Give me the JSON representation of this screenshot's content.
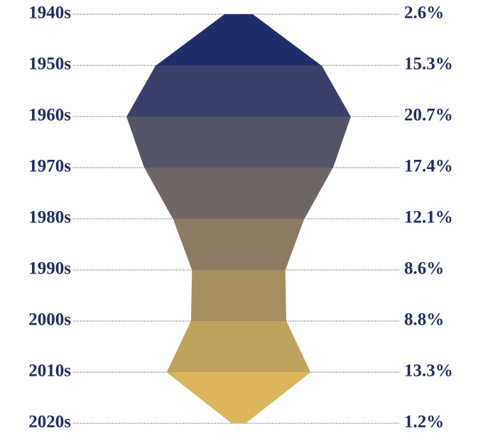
{
  "chart_data": {
    "type": "violin",
    "categories": [
      "1940s",
      "1950s",
      "1960s",
      "1970s",
      "1980s",
      "1990s",
      "2000s",
      "2010s",
      "2020s"
    ],
    "values": [
      2.6,
      15.3,
      20.7,
      17.4,
      12.1,
      8.6,
      8.8,
      13.3,
      1.2
    ],
    "value_labels": [
      "2.6%",
      "15.3%",
      "20.7%",
      "17.4%",
      "12.1%",
      "8.6%",
      "8.8%",
      "13.3%",
      "1.2%"
    ],
    "colors": [
      "#1f2d6b",
      "#dab55c"
    ],
    "grid": true
  }
}
